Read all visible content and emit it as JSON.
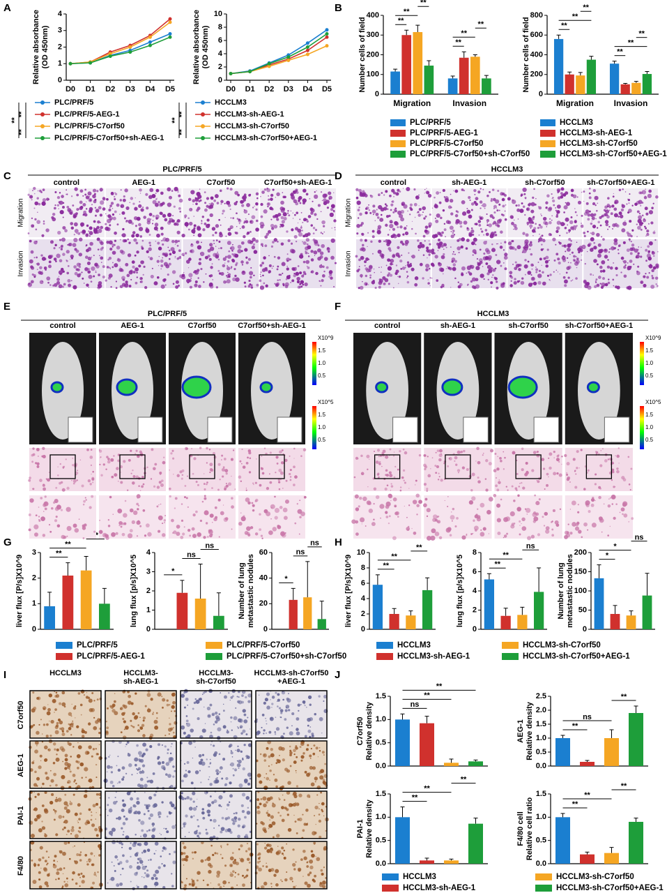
{
  "panel_labels": [
    "A",
    "B",
    "C",
    "D",
    "E",
    "F",
    "G",
    "H",
    "I",
    "J"
  ],
  "chart_data": [
    {
      "type": "line",
      "categories": [
        "D0",
        "D1",
        "D2",
        "D3",
        "D4",
        "D5"
      ],
      "ylabel": [
        "Relative  absorbance",
        "(OD 450nm)"
      ],
      "ylim": [
        0,
        4
      ],
      "yticks": [
        0,
        1,
        2,
        3,
        4
      ],
      "series": [
        {
          "name": "PLC/PRF/5",
          "color": "#1b7fd0",
          "values": [
            1,
            1.05,
            1.5,
            1.8,
            2.3,
            2.8
          ]
        },
        {
          "name": "PLC/PRF/5-AEG-1",
          "color": "#d0312d",
          "values": [
            1,
            1.1,
            1.7,
            2.1,
            2.7,
            3.7
          ]
        },
        {
          "name": "PLC/PRF/5-C7orf50",
          "color": "#f5a623",
          "values": [
            1,
            1.1,
            1.6,
            2.0,
            2.6,
            3.5
          ]
        },
        {
          "name": "PLC/PRF/5-C7orf50+sh-AEG-1",
          "color": "#1e9e3a",
          "values": [
            1,
            1.05,
            1.45,
            1.7,
            2.1,
            2.6
          ]
        }
      ],
      "legend_sig": [
        "**",
        "**",
        "**"
      ]
    },
    {
      "type": "line",
      "categories": [
        "D0",
        "D1",
        "D2",
        "D3",
        "D4",
        "D5"
      ],
      "ylabel": [
        "Relative  absorbance",
        "(OD 450nm)"
      ],
      "ylim": [
        0,
        10
      ],
      "yticks": [
        0,
        2,
        4,
        6,
        8,
        10
      ],
      "series": [
        {
          "name": "HCCLM3",
          "color": "#1b7fd0",
          "values": [
            1,
            1.4,
            2.6,
            3.8,
            5.6,
            7.6
          ]
        },
        {
          "name": "HCCLM3-sh-AEG-1",
          "color": "#d0312d",
          "values": [
            1,
            1.3,
            2.3,
            3.2,
            4.5,
            6.5
          ]
        },
        {
          "name": "HCCLM3-sh-C7orf50",
          "color": "#f5a623",
          "values": [
            1,
            1.3,
            2.1,
            3.0,
            3.9,
            5.2
          ]
        },
        {
          "name": "HCCLM3-sh-C7orf50+AEG-1",
          "color": "#1e9e3a",
          "values": [
            1,
            1.3,
            2.5,
            3.5,
            5.0,
            7.0
          ]
        }
      ],
      "legend_sig": [
        "**",
        "**",
        "**"
      ]
    },
    {
      "type": "bar",
      "categories": [
        "Migration",
        "Invasion"
      ],
      "ylabel": [
        "Number cells of field"
      ],
      "ylim": [
        0,
        400
      ],
      "yticks": [
        0,
        100,
        200,
        300,
        400
      ],
      "series": [
        {
          "name": "PLC/PRF/5",
          "color": "#1b7fd0",
          "values": [
            115,
            80
          ],
          "errors": [
            12,
            12
          ]
        },
        {
          "name": "PLC/PRF/5-AEG-1",
          "color": "#d0312d",
          "values": [
            300,
            185
          ],
          "errors": [
            25,
            30
          ]
        },
        {
          "name": "PLC/PRF/5-C7orf50",
          "color": "#f5a623",
          "values": [
            315,
            190
          ],
          "errors": [
            35,
            10
          ]
        },
        {
          "name": "PLC/PRF/5-C7orf50+sh-C7orf50",
          "color": "#1e9e3a",
          "values": [
            145,
            80
          ],
          "errors": [
            25,
            15
          ]
        }
      ],
      "sig": [
        {
          "label": "**",
          "group": 0,
          "pair": [
            0,
            1
          ]
        },
        {
          "label": "**",
          "group": 0,
          "pair": [
            0,
            2
          ]
        },
        {
          "label": "**",
          "group": 0,
          "pair": [
            2,
            3
          ]
        },
        {
          "label": "**",
          "group": 1,
          "pair": [
            0,
            1
          ]
        },
        {
          "label": "**",
          "group": 1,
          "pair": [
            0,
            2
          ]
        },
        {
          "label": "**",
          "group": 1,
          "pair": [
            2,
            3
          ]
        }
      ]
    },
    {
      "type": "bar",
      "categories": [
        "Migration",
        "Invasion"
      ],
      "ylabel": [
        "Number cells of field"
      ],
      "ylim": [
        0,
        800
      ],
      "yticks": [
        0,
        200,
        400,
        600,
        800
      ],
      "series": [
        {
          "name": "HCCLM3",
          "color": "#1b7fd0",
          "values": [
            560,
            310
          ],
          "errors": [
            40,
            25
          ]
        },
        {
          "name": "HCCLM3-sh-AEG-1",
          "color": "#d0312d",
          "values": [
            200,
            100
          ],
          "errors": [
            25,
            10
          ]
        },
        {
          "name": "HCCLM3-sh-C7orf50",
          "color": "#f5a623",
          "values": [
            190,
            115
          ],
          "errors": [
            30,
            15
          ]
        },
        {
          "name": "HCCLM3-sh-C7orf50+AEG-1",
          "color": "#1e9e3a",
          "values": [
            350,
            205
          ],
          "errors": [
            35,
            25
          ]
        }
      ],
      "sig": [
        {
          "label": "**",
          "group": 0,
          "pair": [
            0,
            1
          ]
        },
        {
          "label": "**",
          "group": 0,
          "pair": [
            0,
            3
          ]
        },
        {
          "label": "**",
          "group": 0,
          "pair": [
            2,
            3
          ]
        },
        {
          "label": "**",
          "group": 1,
          "pair": [
            0,
            1
          ]
        },
        {
          "label": "**",
          "group": 1,
          "pair": [
            0,
            3
          ]
        },
        {
          "label": "**",
          "group": 1,
          "pair": [
            2,
            3
          ]
        }
      ]
    },
    {
      "type": "bar",
      "ylabel": [
        "liver flux [P/s]X10^9"
      ],
      "ylim": [
        0,
        3
      ],
      "yticks": [
        0,
        1,
        2,
        3
      ],
      "values": [
        0.9,
        2.1,
        2.3,
        1.0
      ],
      "errors": [
        0.55,
        0.5,
        0.55,
        0.6
      ],
      "colors": [
        "#1b7fd0",
        "#d0312d",
        "#f5a623",
        "#1e9e3a"
      ],
      "sig": [
        {
          "label": "**",
          "pair": [
            0,
            1
          ]
        },
        {
          "label": "**",
          "pair": [
            0,
            2
          ]
        },
        {
          "label": "**",
          "pair": [
            2,
            3
          ]
        }
      ]
    },
    {
      "type": "bar",
      "ylabel": [
        "lung flux [p/s]X10^5"
      ],
      "ylim": [
        0,
        4
      ],
      "yticks": [
        0,
        1,
        2,
        3,
        4
      ],
      "values": [
        0,
        1.9,
        1.6,
        0.7
      ],
      "errors": [
        0,
        0.65,
        1.8,
        1.2
      ],
      "colors": [
        "#1b7fd0",
        "#d0312d",
        "#f5a623",
        "#1e9e3a"
      ],
      "sig": [
        {
          "label": "*",
          "pair": [
            0,
            1
          ]
        },
        {
          "label": "ns",
          "pair": [
            1,
            2
          ]
        },
        {
          "label": "ns",
          "pair": [
            2,
            3
          ]
        }
      ]
    },
    {
      "type": "bar",
      "ylabel": [
        "Number of lung",
        "metastastic nodules"
      ],
      "ylim": [
        0,
        60
      ],
      "yticks": [
        0,
        20,
        40,
        60
      ],
      "values": [
        0,
        23,
        25,
        8
      ],
      "errors": [
        0,
        9,
        28,
        14
      ],
      "colors": [
        "#1b7fd0",
        "#d0312d",
        "#f5a623",
        "#1e9e3a"
      ],
      "sig": [
        {
          "label": "*",
          "pair": [
            0,
            1
          ]
        },
        {
          "label": "ns",
          "pair": [
            1,
            2
          ]
        },
        {
          "label": "ns",
          "pair": [
            2,
            3
          ]
        }
      ]
    },
    {
      "type": "bar",
      "ylabel": [
        "liver flux [P/s]X10^9"
      ],
      "ylim": [
        0,
        10
      ],
      "yticks": [
        0,
        2,
        4,
        6,
        8,
        10
      ],
      "values": [
        5.8,
        2.0,
        1.8,
        5.1
      ],
      "errors": [
        1.3,
        0.7,
        0.6,
        1.6
      ],
      "colors": [
        "#1b7fd0",
        "#d0312d",
        "#f5a623",
        "#1e9e3a"
      ],
      "sig": [
        {
          "label": "**",
          "pair": [
            0,
            1
          ]
        },
        {
          "label": "**",
          "pair": [
            0,
            2
          ]
        },
        {
          "label": "**",
          "pair": [
            2,
            3
          ]
        }
      ]
    },
    {
      "type": "bar",
      "ylabel": [
        "lung flux [p/s]X10^5"
      ],
      "ylim": [
        0,
        8
      ],
      "yticks": [
        0,
        2,
        4,
        6,
        8
      ],
      "values": [
        5.2,
        1.4,
        1.5,
        3.9
      ],
      "errors": [
        0.6,
        0.8,
        0.8,
        2.5
      ],
      "colors": [
        "#1b7fd0",
        "#d0312d",
        "#f5a623",
        "#1e9e3a"
      ],
      "sig": [
        {
          "label": "**",
          "pair": [
            0,
            1
          ]
        },
        {
          "label": "**",
          "pair": [
            0,
            2
          ]
        },
        {
          "label": "ns",
          "pair": [
            2,
            3
          ]
        }
      ]
    },
    {
      "type": "bar",
      "ylabel": [
        "Number of lung",
        "metastastic nodules"
      ],
      "ylim": [
        0,
        200
      ],
      "yticks": [
        0,
        50,
        100,
        150,
        200
      ],
      "values": [
        133,
        40,
        36,
        88
      ],
      "errors": [
        35,
        22,
        12,
        58
      ],
      "colors": [
        "#1b7fd0",
        "#d0312d",
        "#f5a623",
        "#1e9e3a"
      ],
      "sig": [
        {
          "label": "*",
          "pair": [
            0,
            1
          ]
        },
        {
          "label": "*",
          "pair": [
            0,
            2
          ]
        },
        {
          "label": "ns",
          "pair": [
            2,
            3
          ]
        }
      ]
    },
    {
      "type": "bar",
      "ylabel": [
        "C7orf50",
        "Relative density"
      ],
      "ylim": [
        0,
        1.5
      ],
      "yticks": [
        {
          "value": 0,
          "label": "0.0"
        },
        0.5,
        {
          "value": 1,
          "label": "1.0"
        },
        1.5
      ],
      "values": [
        1.0,
        0.92,
        0.07,
        0.1
      ],
      "errors": [
        0.12,
        0.15,
        0.08,
        0.03
      ],
      "colors": [
        "#1b7fd0",
        "#d0312d",
        "#f5a623",
        "#1e9e3a"
      ],
      "sig": [
        {
          "label": "ns",
          "pair": [
            0,
            1
          ]
        },
        {
          "label": "**",
          "pair": [
            0,
            2
          ]
        },
        {
          "label": "**",
          "pair": [
            0,
            3
          ]
        }
      ]
    },
    {
      "type": "bar",
      "ylabel": [
        "AEG-1",
        "Relative density"
      ],
      "ylim": [
        0,
        2.5
      ],
      "yticks": [
        {
          "value": 0,
          "label": "0.0"
        },
        0.5,
        {
          "value": 1,
          "label": "1.0"
        },
        1.5,
        {
          "value": 2,
          "label": "2.0"
        },
        2.5
      ],
      "values": [
        1.0,
        0.15,
        1.0,
        1.9
      ],
      "errors": [
        0.1,
        0.05,
        0.3,
        0.25
      ],
      "colors": [
        "#1b7fd0",
        "#d0312d",
        "#f5a623",
        "#1e9e3a"
      ],
      "sig": [
        {
          "label": "**",
          "pair": [
            0,
            1
          ]
        },
        {
          "label": "ns",
          "pair": [
            0,
            2
          ]
        },
        {
          "label": "**",
          "pair": [
            2,
            3
          ]
        }
      ]
    },
    {
      "type": "bar",
      "ylabel": [
        "PAI-1",
        "Relative density"
      ],
      "ylim": [
        0,
        1.5
      ],
      "yticks": [
        {
          "value": 0,
          "label": "0.0"
        },
        0.5,
        {
          "value": 1,
          "label": "1.0"
        },
        1.5
      ],
      "values": [
        1.0,
        0.07,
        0.07,
        0.86
      ],
      "errors": [
        0.22,
        0.05,
        0.03,
        0.12
      ],
      "colors": [
        "#1b7fd0",
        "#d0312d",
        "#f5a623",
        "#1e9e3a"
      ],
      "sig": [
        {
          "label": "**",
          "pair": [
            0,
            1
          ]
        },
        {
          "label": "**",
          "pair": [
            0,
            2
          ]
        },
        {
          "label": "**",
          "pair": [
            2,
            3
          ]
        }
      ]
    },
    {
      "type": "bar",
      "ylabel": [
        "F4/80 cell",
        "Relative  cell ratio"
      ],
      "ylim": [
        0,
        1.5
      ],
      "yticks": [
        {
          "value": 0,
          "label": "0.0"
        },
        0.5,
        {
          "value": 1,
          "label": "1.0"
        },
        1.5
      ],
      "values": [
        1.0,
        0.2,
        0.23,
        0.9
      ],
      "errors": [
        0.08,
        0.05,
        0.12,
        0.08
      ],
      "colors": [
        "#1b7fd0",
        "#d0312d",
        "#f5a623",
        "#1e9e3a"
      ],
      "sig": [
        {
          "label": "**",
          "pair": [
            0,
            1
          ]
        },
        {
          "label": "**",
          "pair": [
            0,
            2
          ]
        },
        {
          "label": "**",
          "pair": [
            2,
            3
          ]
        }
      ]
    }
  ],
  "legend_G": [
    {
      "name": "PLC/PRF/5",
      "color": "#1b7fd0"
    },
    {
      "name": "PLC/PRF/5-AEG-1",
      "color": "#d0312d"
    },
    {
      "name": "PLC/PRF/5-C7orf50",
      "color": "#f5a623"
    },
    {
      "name": "PLC/PRF/5-C7orf50+sh-C7orf50",
      "color": "#1e9e3a"
    }
  ],
  "legend_H": [
    {
      "name": "HCCLM3",
      "color": "#1b7fd0"
    },
    {
      "name": "HCCLM3-sh-AEG-1",
      "color": "#d0312d"
    },
    {
      "name": "HCCLM3-sh-C7orf50",
      "color": "#f5a623"
    },
    {
      "name": "HCCLM3-sh-C7orf50+AEG-1",
      "color": "#1e9e3a"
    }
  ],
  "legend_J": [
    {
      "name": "HCCLM3",
      "color": "#1b7fd0"
    },
    {
      "name": "HCCLM3-sh-AEG-1",
      "color": "#d0312d"
    },
    {
      "name": "HCCLM3-sh-C7orf50",
      "color": "#f5a623"
    },
    {
      "name": "HCCLM3-sh-C7orf50+AEG-1",
      "color": "#1e9e3a"
    }
  ],
  "panel_C": {
    "title": "PLC/PRF/5",
    "columns": [
      "control",
      "AEG-1",
      "C7orf50",
      "C7orf50+sh-AEG-1"
    ],
    "rows": [
      "Migration",
      "Invasion"
    ]
  },
  "panel_D": {
    "title": "HCCLM3",
    "columns": [
      "control",
      "sh-AEG-1",
      "sh-C7orf50",
      "sh-C7orf50+AEG-1"
    ],
    "rows": [
      "Migration",
      "Invasion"
    ]
  },
  "panel_E": {
    "title": "PLC/PRF/5",
    "columns": [
      "control",
      "AEG-1",
      "C7orf50",
      "C7orf50+sh-AEG-1"
    ],
    "scale_top": [
      "X10^9",
      "1.5",
      "1.0",
      "0.5"
    ],
    "scale_bottom": [
      "X10^5",
      "1.5",
      "1.0",
      "0.5"
    ]
  },
  "panel_F": {
    "title": "HCCLM3",
    "columns": [
      "control",
      "sh-AEG-1",
      "sh-C7orf50",
      "sh-C7orf50+AEG-1"
    ],
    "scale_top": [
      "X10^9",
      "1.5",
      "1.0",
      "0.5"
    ],
    "scale_bottom": [
      "X10^5",
      "1.5",
      "1.0",
      "0.5"
    ]
  },
  "panel_I": {
    "columns": [
      [
        "HCCLM3"
      ],
      [
        "HCCLM3-",
        "sh-AEG-1"
      ],
      [
        "HCCLM3-",
        "sh-C7orf50"
      ],
      [
        "HCCLM3-sh-C7orf50",
        "+AEG-1"
      ]
    ],
    "rows": [
      "C7orf50",
      "AEG-1",
      "PAI-1",
      "F4/80"
    ]
  }
}
